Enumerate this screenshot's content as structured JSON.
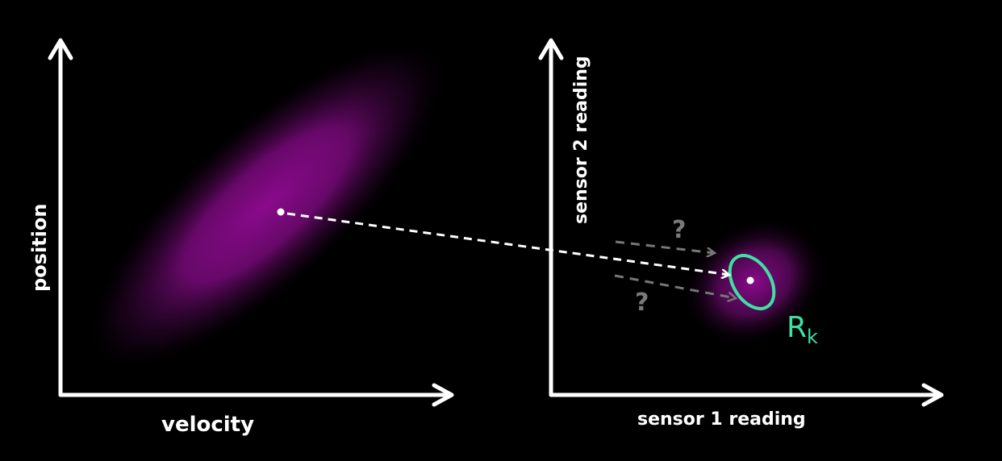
{
  "left_plot": {
    "x_axis_label": "velocity",
    "y_axis_label": "position"
  },
  "right_plot": {
    "x_axis_label": "sensor 1 reading",
    "y_axis_label": "sensor 2 reading"
  },
  "annotations": {
    "question_mark_upper": "?",
    "question_mark_lower": "?",
    "noise_covariance_label_main": "R",
    "noise_covariance_label_sub": "k"
  },
  "colors": {
    "background": "#000000",
    "axes": "#ffffff",
    "distribution": "#8a0a8c",
    "noise_ellipse": "#3fe0a3",
    "dashed_arrow_main": "#ffffff",
    "dashed_arrow_alt": "#777777"
  }
}
